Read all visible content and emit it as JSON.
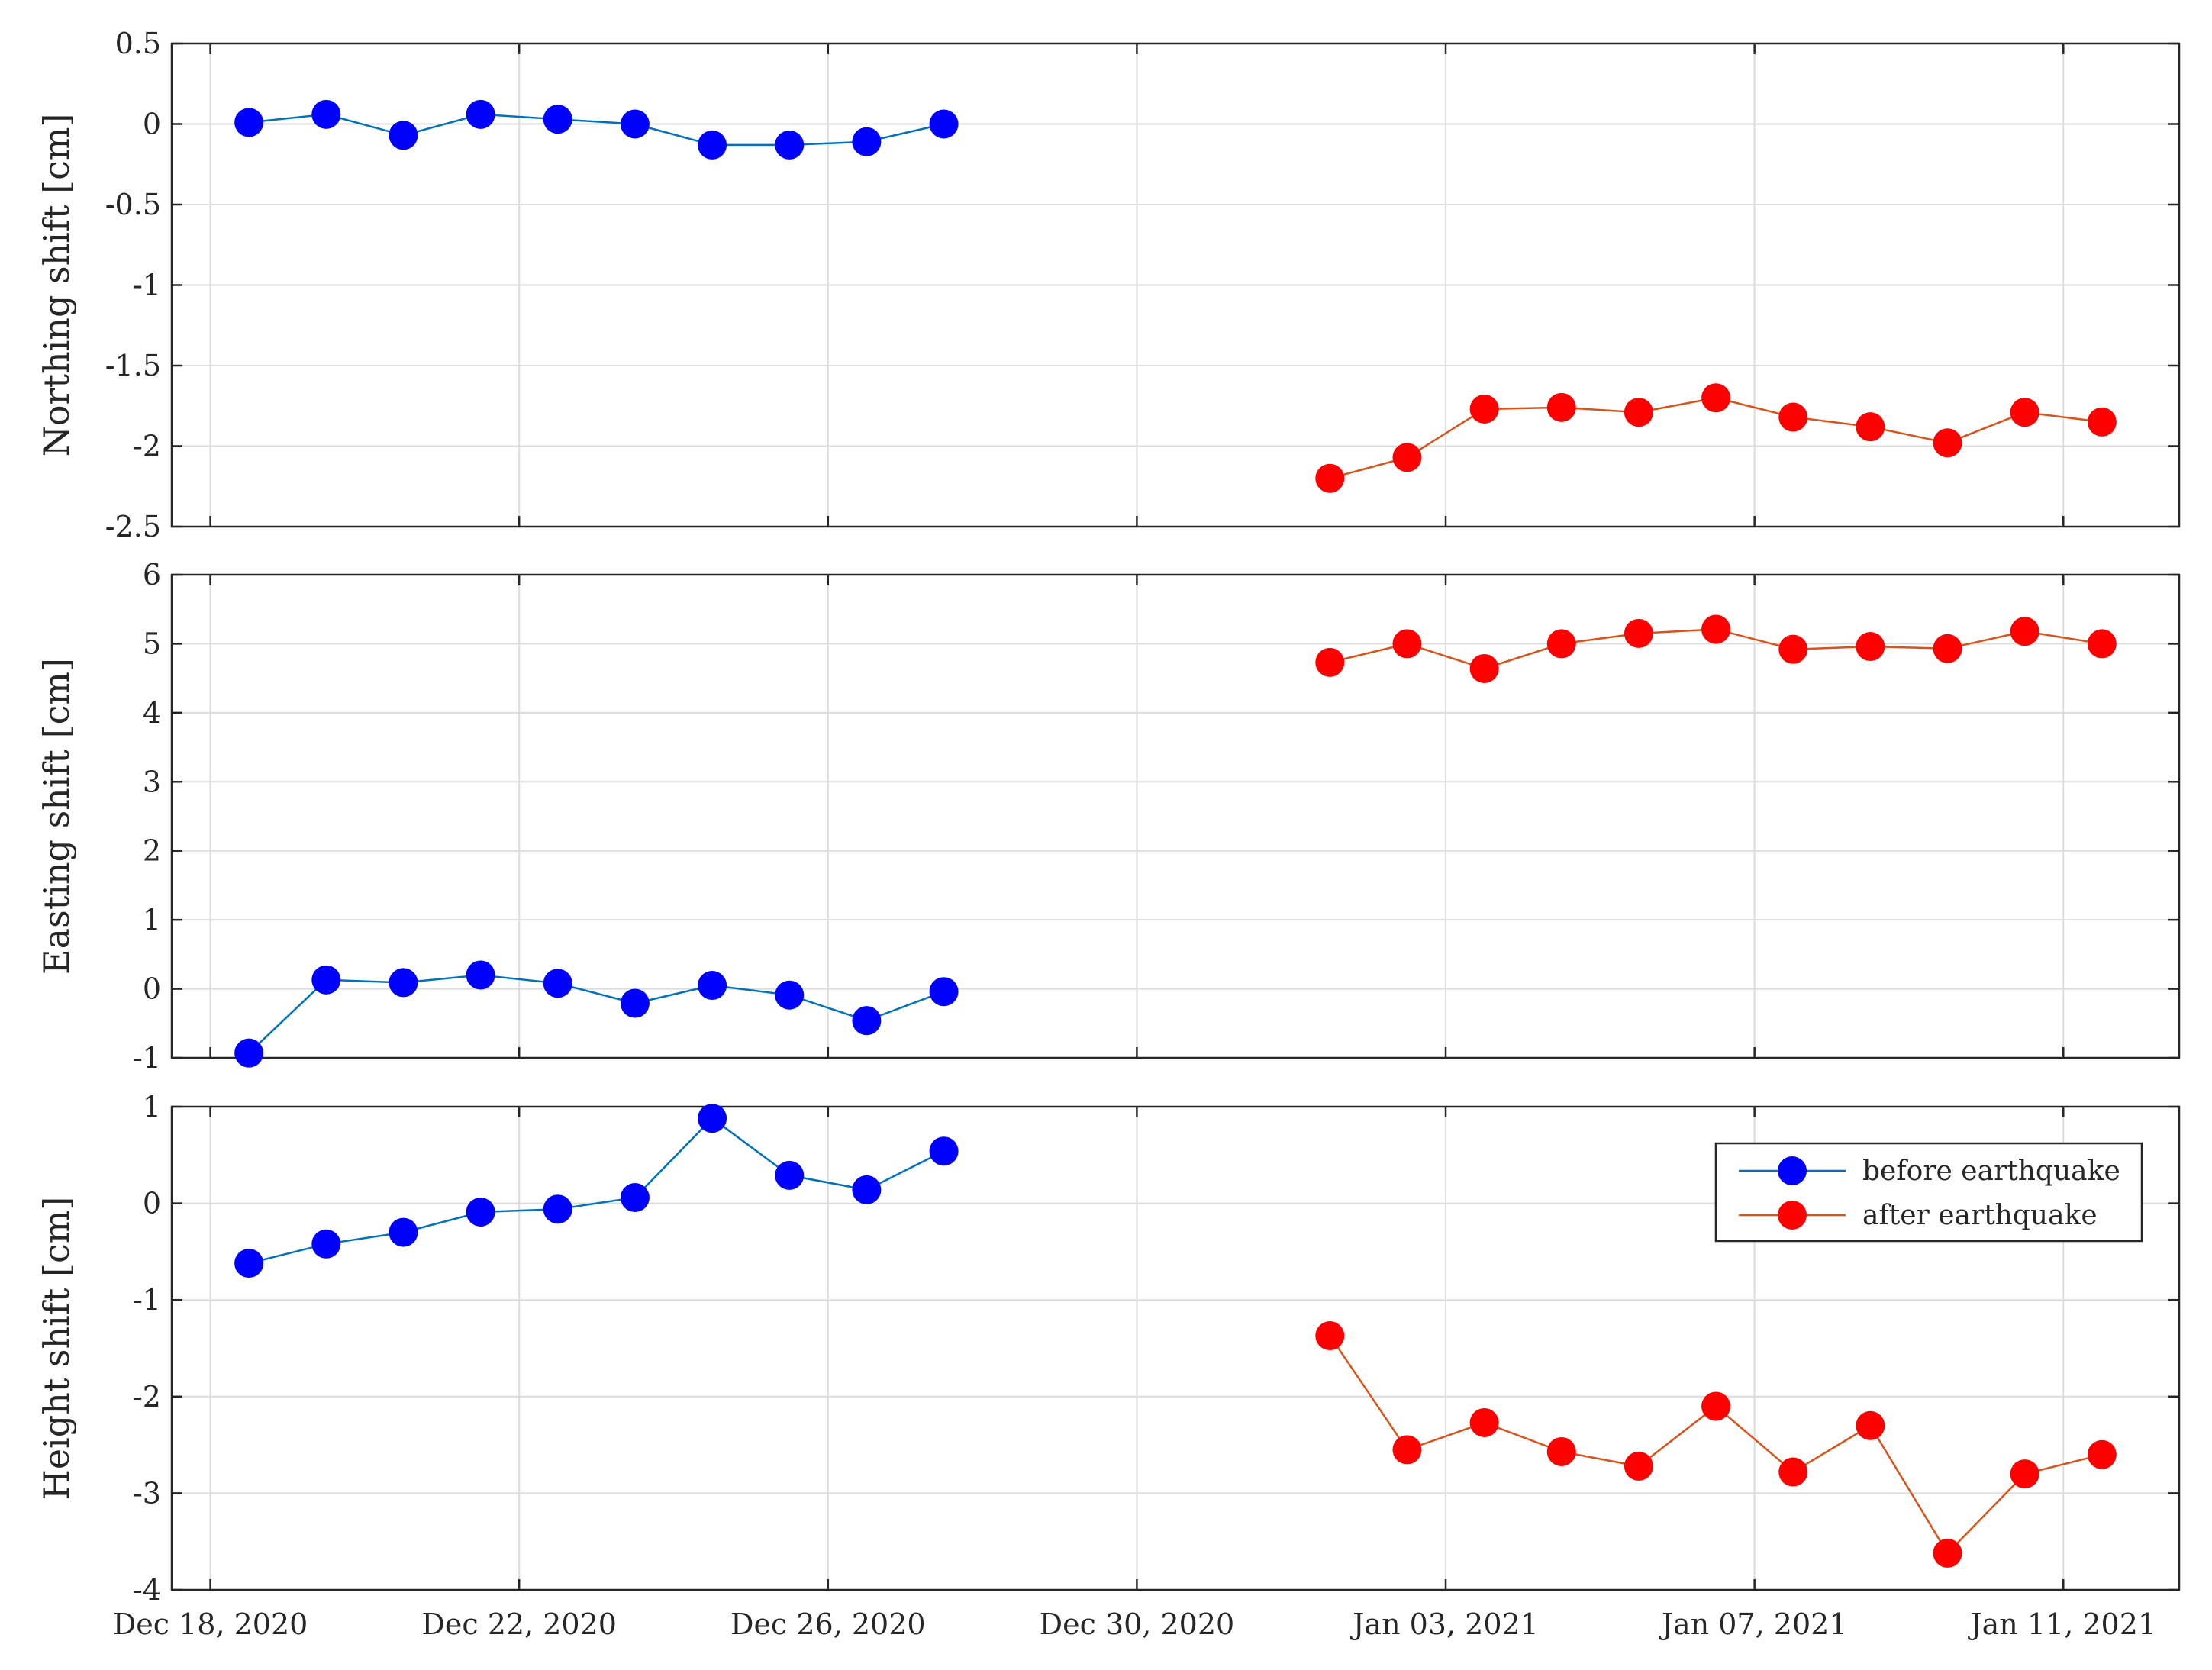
{
  "chart_data": {
    "type": "line",
    "x_tick_labels": [
      "Dec 18, 2020",
      "Dec 22, 2020",
      "Dec 26, 2020",
      "Dec 30, 2020",
      "Jan 03, 2021",
      "Jan 07, 2021",
      "Jan 11, 2021"
    ],
    "x_ticks": [
      "2020-12-18",
      "2020-12-22",
      "2020-12-26",
      "2020-12-30",
      "2021-01-03",
      "2021-01-07",
      "2021-01-11"
    ],
    "x_range": [
      "2020-12-17.5",
      "2021-01-12.5"
    ],
    "grid": true,
    "legend": {
      "location": "top-right of bottom panel",
      "entries": [
        "before earthquake",
        "after earthquake"
      ]
    },
    "colors": {
      "before_marker": "#0000ff",
      "before_line": "#0072bd",
      "after_marker": "#ff0000",
      "after_line": "#d95319"
    },
    "before_dates": [
      "2020-12-18.5",
      "2020-12-19.5",
      "2020-12-20.5",
      "2020-12-21.5",
      "2020-12-22.5",
      "2020-12-23.5",
      "2020-12-24.5",
      "2020-12-25.5",
      "2020-12-26.5",
      "2020-12-27.5"
    ],
    "after_dates": [
      "2021-01-01.5",
      "2021-01-02.5",
      "2021-01-03.5",
      "2021-01-04.5",
      "2021-01-05.5",
      "2021-01-06.5",
      "2021-01-07.5",
      "2021-01-08.5",
      "2021-01-09.5",
      "2021-01-10.5",
      "2021-01-11.5"
    ],
    "panels": [
      {
        "ylabel": "Northing shift [cm]",
        "ylim": [
          -2.5,
          0.5
        ],
        "yticks": [
          -2.5,
          -2,
          -1.5,
          -1,
          -0.5,
          0,
          0.5
        ],
        "ytick_labels": [
          "-2.5",
          "-2",
          "-1.5",
          "-1",
          "-0.5",
          "0",
          "0.5"
        ],
        "series": [
          {
            "name": "before earthquake",
            "values": [
              0.01,
              0.06,
              -0.07,
              0.06,
              0.03,
              0.0,
              -0.13,
              -0.13,
              -0.11,
              0.0
            ]
          },
          {
            "name": "after earthquake",
            "values": [
              -2.2,
              -2.07,
              -1.77,
              -1.76,
              -1.79,
              -1.7,
              -1.82,
              -1.88,
              -1.98,
              -1.79,
              -1.85
            ]
          }
        ]
      },
      {
        "ylabel": "Easting shift [cm]",
        "ylim": [
          -1,
          6
        ],
        "yticks": [
          -1,
          0,
          1,
          2,
          3,
          4,
          5,
          6
        ],
        "ytick_labels": [
          "-1",
          "0",
          "1",
          "2",
          "3",
          "4",
          "5",
          "6"
        ],
        "series": [
          {
            "name": "before earthquake",
            "values": [
              -0.93,
              0.13,
              0.09,
              0.2,
              0.08,
              -0.21,
              0.05,
              -0.09,
              -0.46,
              -0.04
            ]
          },
          {
            "name": "after earthquake",
            "values": [
              4.73,
              5.0,
              4.64,
              5.0,
              5.15,
              5.21,
              4.92,
              4.96,
              4.93,
              5.18,
              5.0
            ]
          }
        ]
      },
      {
        "ylabel": "Height shift [cm]",
        "ylim": [
          -4,
          1
        ],
        "yticks": [
          -4,
          -3,
          -2,
          -1,
          0,
          1
        ],
        "ytick_labels": [
          "-4",
          "-3",
          "-2",
          "-1",
          "0",
          "1"
        ],
        "series": [
          {
            "name": "before earthquake",
            "values": [
              -0.62,
              -0.42,
              -0.3,
              -0.09,
              -0.06,
              0.06,
              0.88,
              0.29,
              0.14,
              0.54
            ]
          },
          {
            "name": "after earthquake",
            "values": [
              -1.37,
              -2.55,
              -2.27,
              -2.57,
              -2.72,
              -2.1,
              -2.78,
              -2.3,
              -3.62,
              -2.8,
              -2.6
            ]
          }
        ]
      }
    ]
  }
}
